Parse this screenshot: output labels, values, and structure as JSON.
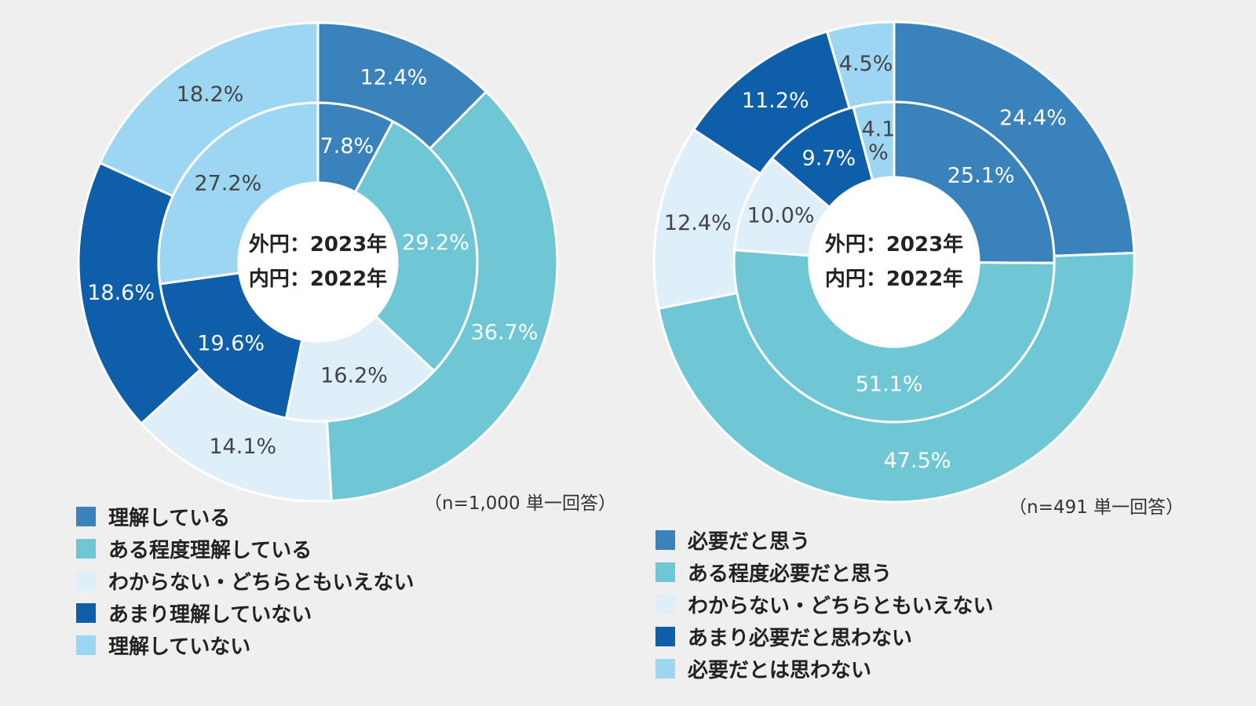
{
  "colors": {
    "c1": "#3a82bb",
    "c2": "#6fc7d5",
    "c3": "#dfeff9",
    "c4": "#0f5ea9",
    "c5": "#9dd6f2",
    "separator": "#ffffff"
  },
  "chart_data": [
    {
      "type": "pie",
      "variant": "double-donut",
      "center_labels": [
        "外円：2023年",
        "内円：2022年"
      ],
      "note": "（n=1,000 単一回答）",
      "categories": [
        "理解している",
        "ある程度理解している",
        "わからない・どちらともいえない",
        "あまり理解していない",
        "理解していない"
      ],
      "series": [
        {
          "values": [
            12.4,
            36.7,
            14.1,
            18.6,
            18.2
          ],
          "labels": [
            "12.4%",
            "36.7%",
            "14.1%",
            "18.6%",
            "18.2%"
          ]
        },
        {
          "values": [
            7.8,
            29.2,
            16.2,
            19.6,
            27.2
          ],
          "labels": [
            "7.8%",
            "29.2%",
            "16.2%",
            "19.6%",
            "27.2%"
          ]
        }
      ]
    },
    {
      "type": "pie",
      "variant": "double-donut",
      "center_labels": [
        "外円：2023年",
        "内円：2022年"
      ],
      "note": "（n=491 単一回答）",
      "categories": [
        "必要だと思う",
        "ある程度必要だと思う",
        "わからない・どちらともいえない",
        "あまり必要だと思わない",
        "必要だとは思わない"
      ],
      "series": [
        {
          "values": [
            24.4,
            47.5,
            12.4,
            11.2,
            4.5
          ],
          "labels": [
            "24.4%",
            "47.5%",
            "12.4%",
            "11.2%",
            "4.5%"
          ]
        },
        {
          "values": [
            25.1,
            51.1,
            10.0,
            9.7,
            4.1
          ],
          "labels": [
            "25.1%",
            "51.1%",
            "10.0%",
            "9.7%",
            "4.1%"
          ]
        }
      ]
    }
  ]
}
